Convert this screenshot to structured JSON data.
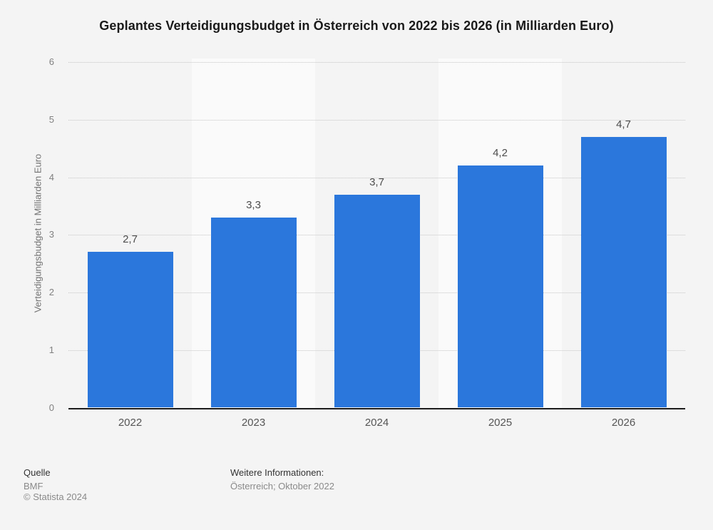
{
  "chart_data": {
    "type": "bar",
    "title": "Geplantes Verteidigungsbudget in Österreich von 2022 bis 2026 (in Milliarden Euro)",
    "categories": [
      "2022",
      "2023",
      "2024",
      "2025",
      "2026"
    ],
    "values": [
      2.7,
      3.3,
      3.7,
      4.2,
      4.7
    ],
    "value_labels": [
      "2,7",
      "3,3",
      "3,7",
      "4,2",
      "4,7"
    ],
    "xlabel": "",
    "ylabel": "Verteidigungsbudget in Milliarden Euro",
    "ylim": [
      0,
      6
    ],
    "yticks": [
      0,
      1,
      2,
      3,
      4,
      5,
      6
    ],
    "ytick_labels": [
      "0",
      "1",
      "2",
      "3",
      "4",
      "5",
      "6"
    ],
    "grid": "horizontal-dotted",
    "legend": "none",
    "colors": {
      "bar": "#2b77dc",
      "background": "#f4f4f4",
      "band": "#fafafa",
      "gridline": "#c6c6c6",
      "axis_line": "#1c1c1c"
    }
  },
  "footer": {
    "source_label": "Quelle",
    "source": "BMF",
    "copyright": "© Statista 2024",
    "info_label": "Weitere Informationen:",
    "info": "Österreich; Oktober 2022"
  }
}
